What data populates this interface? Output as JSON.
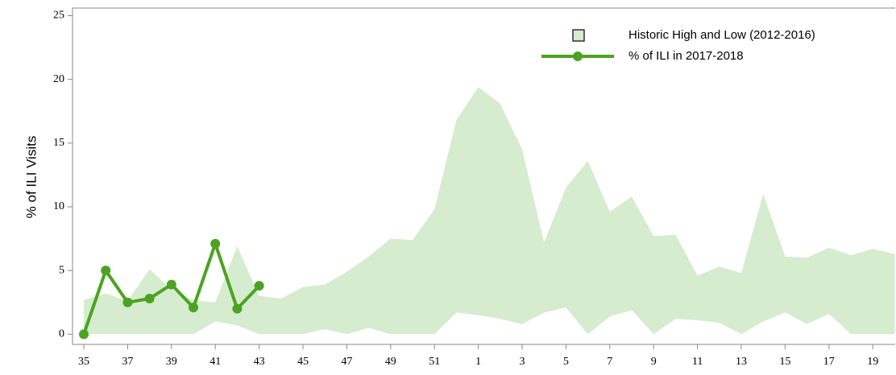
{
  "chart_data": {
    "type": "line",
    "y_label": "% of ILI Visits",
    "categories": [
      35,
      null,
      37,
      null,
      39,
      null,
      41,
      null,
      43,
      null,
      45,
      null,
      47,
      null,
      49,
      null,
      51,
      null,
      1,
      null,
      3,
      null,
      5,
      null,
      7,
      null,
      9,
      null,
      11,
      null,
      13,
      null,
      15,
      null,
      17,
      null,
      19,
      null
    ],
    "ylim": [
      -0.8,
      25.6
    ],
    "yticks": [
      0,
      5,
      10,
      15,
      20,
      25
    ],
    "legend": "top-right",
    "series": [
      {
        "name": "Historic High and Low (2012-2016)",
        "type": "band",
        "color": "#d5ecce",
        "high": [
          2.7,
          3.2,
          2.6,
          5.1,
          3.5,
          2.7,
          2.5,
          6.9,
          3.0,
          2.8,
          3.7,
          3.9,
          4.9,
          6.1,
          7.5,
          7.4,
          9.8,
          16.8,
          19.4,
          18.1,
          14.5,
          7.2,
          11.5,
          13.6,
          9.6,
          10.8,
          7.7,
          7.8,
          4.6,
          5.3,
          4.8,
          11.0,
          6.1,
          6.0,
          6.8,
          6.2,
          6.7,
          6.3
        ],
        "low": [
          0,
          0,
          0,
          0,
          0,
          0,
          1.0,
          0.7,
          0,
          0,
          0,
          0.4,
          0,
          0.5,
          0,
          0,
          0,
          1.7,
          1.5,
          1.2,
          0.8,
          1.7,
          2.1,
          0,
          1.4,
          1.9,
          0,
          1.2,
          1.1,
          0.9,
          0,
          1.0,
          1.7,
          0.8,
          1.6,
          0,
          0,
          0
        ]
      },
      {
        "name": "% of ILI in 2017-2018",
        "type": "line",
        "color": "#4ca321",
        "values": [
          0,
          5.0,
          2.5,
          2.8,
          3.9,
          2.1,
          7.1,
          2.0,
          3.8,
          null,
          null,
          null,
          null,
          null,
          null,
          null,
          null,
          null,
          null,
          null,
          null,
          null,
          null,
          null,
          null,
          null,
          null,
          null,
          null,
          null,
          null,
          null,
          null,
          null,
          null,
          null,
          null,
          null
        ]
      }
    ]
  }
}
